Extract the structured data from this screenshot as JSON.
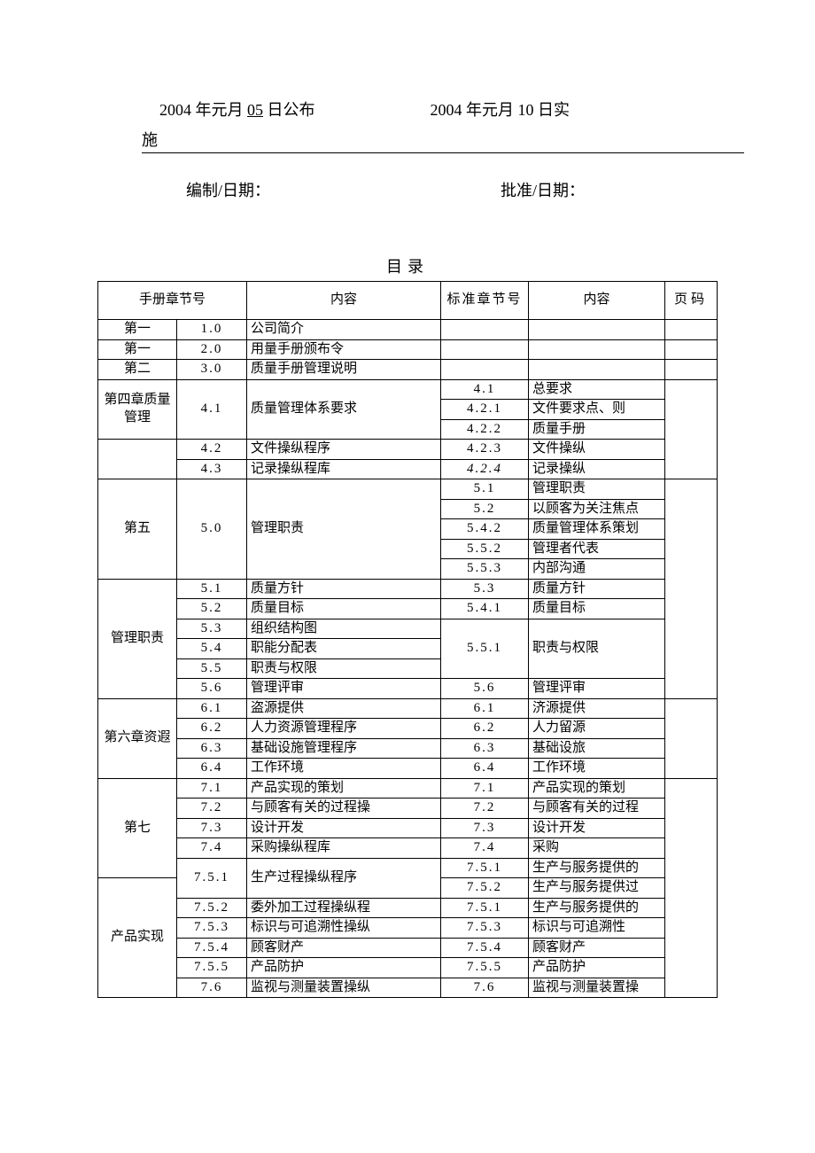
{
  "header": {
    "publish": "2004 年元月",
    "publish_day": "05",
    "publish_suffix": "日公布",
    "implement": "2004 年元月 10 日实",
    "shi": "施",
    "compile_label": "编制/日期：",
    "approve_label": "批准/日期："
  },
  "toc": {
    "title": "目录",
    "col_chapter": "手册章节号",
    "col_content": "内容",
    "col_std": "标准章节号",
    "col_content2": "内容",
    "col_page": "页码",
    "rows": [
      {
        "chapter": "第一",
        "sec": "1.0",
        "c": "公司简介",
        "std": "",
        "c2": "",
        "page": ""
      },
      {
        "chapter": "第一",
        "sec": "2.0",
        "c": "用量手册颁布令",
        "std": "",
        "c2": "",
        "page": ""
      },
      {
        "chapter": "第二",
        "sec": "3.0",
        "c": "质量手册管理说明",
        "std": "",
        "c2": "",
        "page": ""
      }
    ],
    "ch4": {
      "label": "第四章质量管理",
      "r1": {
        "sec": "4.1",
        "c": "质量管理体系要求",
        "std": "4.1",
        "c2": "总要求"
      },
      "r2": {
        "std": "4.2.1",
        "c2": "文件要求点、则"
      },
      "r3": {
        "std": "4.2.2",
        "c2": "质量手册"
      },
      "r4": {
        "sec": "4.2",
        "c": "文件操纵程序",
        "std": "4.2.3",
        "c2": "文件操纵"
      },
      "r5": {
        "sec": "4.3",
        "c": "记录操纵程库",
        "std": "4.2.4",
        "c2": "记录操纵"
      }
    },
    "ch5": {
      "label": "第五",
      "label2": "管理职责",
      "g1": {
        "sec": "5.0",
        "c": "管理职责",
        "s": [
          {
            "std": "5.1",
            "c2": "管理职责"
          },
          {
            "std": "5.2",
            "c2": "以顾客为关注焦点"
          },
          {
            "std": "5.4.2",
            "c2": "质量管理体系策划"
          },
          {
            "std": "5.5.2",
            "c2": "管理者代表"
          },
          {
            "std": "5.5.3",
            "c2": "内部沟通"
          }
        ]
      },
      "r2": {
        "sec": "5.1",
        "c": "质量方针",
        "std": "5.3",
        "c2": "质量方针"
      },
      "r3": {
        "sec": "5.2",
        "c": "质量目标",
        "std": "5.4.1",
        "c2": "质量目标"
      },
      "g2": {
        "std": "5.5.1",
        "c2": "职责与权限",
        "left": [
          {
            "sec": "5.3",
            "c": "组织结构图"
          },
          {
            "sec": "5.4",
            "c": "职能分配表"
          },
          {
            "sec": "5.5",
            "c": "职责与权限"
          }
        ]
      },
      "r4": {
        "sec": "5.6",
        "c": "管理评审",
        "std": "5.6",
        "c2": "管理评审"
      }
    },
    "ch6": {
      "label": "第六章资遐",
      "rows": [
        {
          "sec": "6.1",
          "c": "盗源提供",
          "std": "6.1",
          "c2": "济源提供"
        },
        {
          "sec": "6.2",
          "c": "人力资源管理程序",
          "std": "6.2",
          "c2": "人力留源"
        },
        {
          "sec": "6.3",
          "c": "基础设施管理程序",
          "std": "6.3",
          "c2": "基础设旅"
        },
        {
          "sec": "6.4",
          "c": "工作环境",
          "std": "6.4",
          "c2": "工作环境"
        }
      ]
    },
    "ch7": {
      "label": "第七",
      "label2": "产品实现",
      "rows": [
        {
          "sec": "7.1",
          "c": "产品实现的策划",
          "std": "7.1",
          "c2": "产品实现的策划"
        },
        {
          "sec": "7.2",
          "c": "与顾客有关的过程操",
          "std": "7.2",
          "c2": "与顾客有关的过程"
        },
        {
          "sec": "7.3",
          "c": "设计开发",
          "std": "7.3",
          "c2": "设计开发"
        },
        {
          "sec": "7.4",
          "c": "采购操纵程库",
          "std": "7.4",
          "c2": "采购"
        }
      ],
      "g1": {
        "sec": "7.5.1",
        "c": "生产过程操纵程序",
        "right": [
          {
            "std": "7.5.1",
            "c2": "生产与服务提供的"
          },
          {
            "std": "7.5.2",
            "c2": "生产与服务提供过"
          }
        ]
      },
      "rows2": [
        {
          "sec": "7.5.2",
          "c": "委外加工过程操纵程",
          "std": "7.5.1",
          "c2": "生产与服务提供的"
        },
        {
          "sec": "7.5.3",
          "c": "标识与可追溯性操纵",
          "std": "7.5.3",
          "c2": "标识与可追溯性"
        },
        {
          "sec": "7.5.4",
          "c": "顾客财产",
          "std": "7.5.4",
          "c2": "顾客财产"
        },
        {
          "sec": "7.5.5",
          "c": "产品防护",
          "std": "7.5.5",
          "c2": "产品防护"
        },
        {
          "sec": "7.6",
          "c": "监视与测量装置操纵",
          "std": "7.6",
          "c2": "监视与测量装置操"
        }
      ]
    }
  }
}
